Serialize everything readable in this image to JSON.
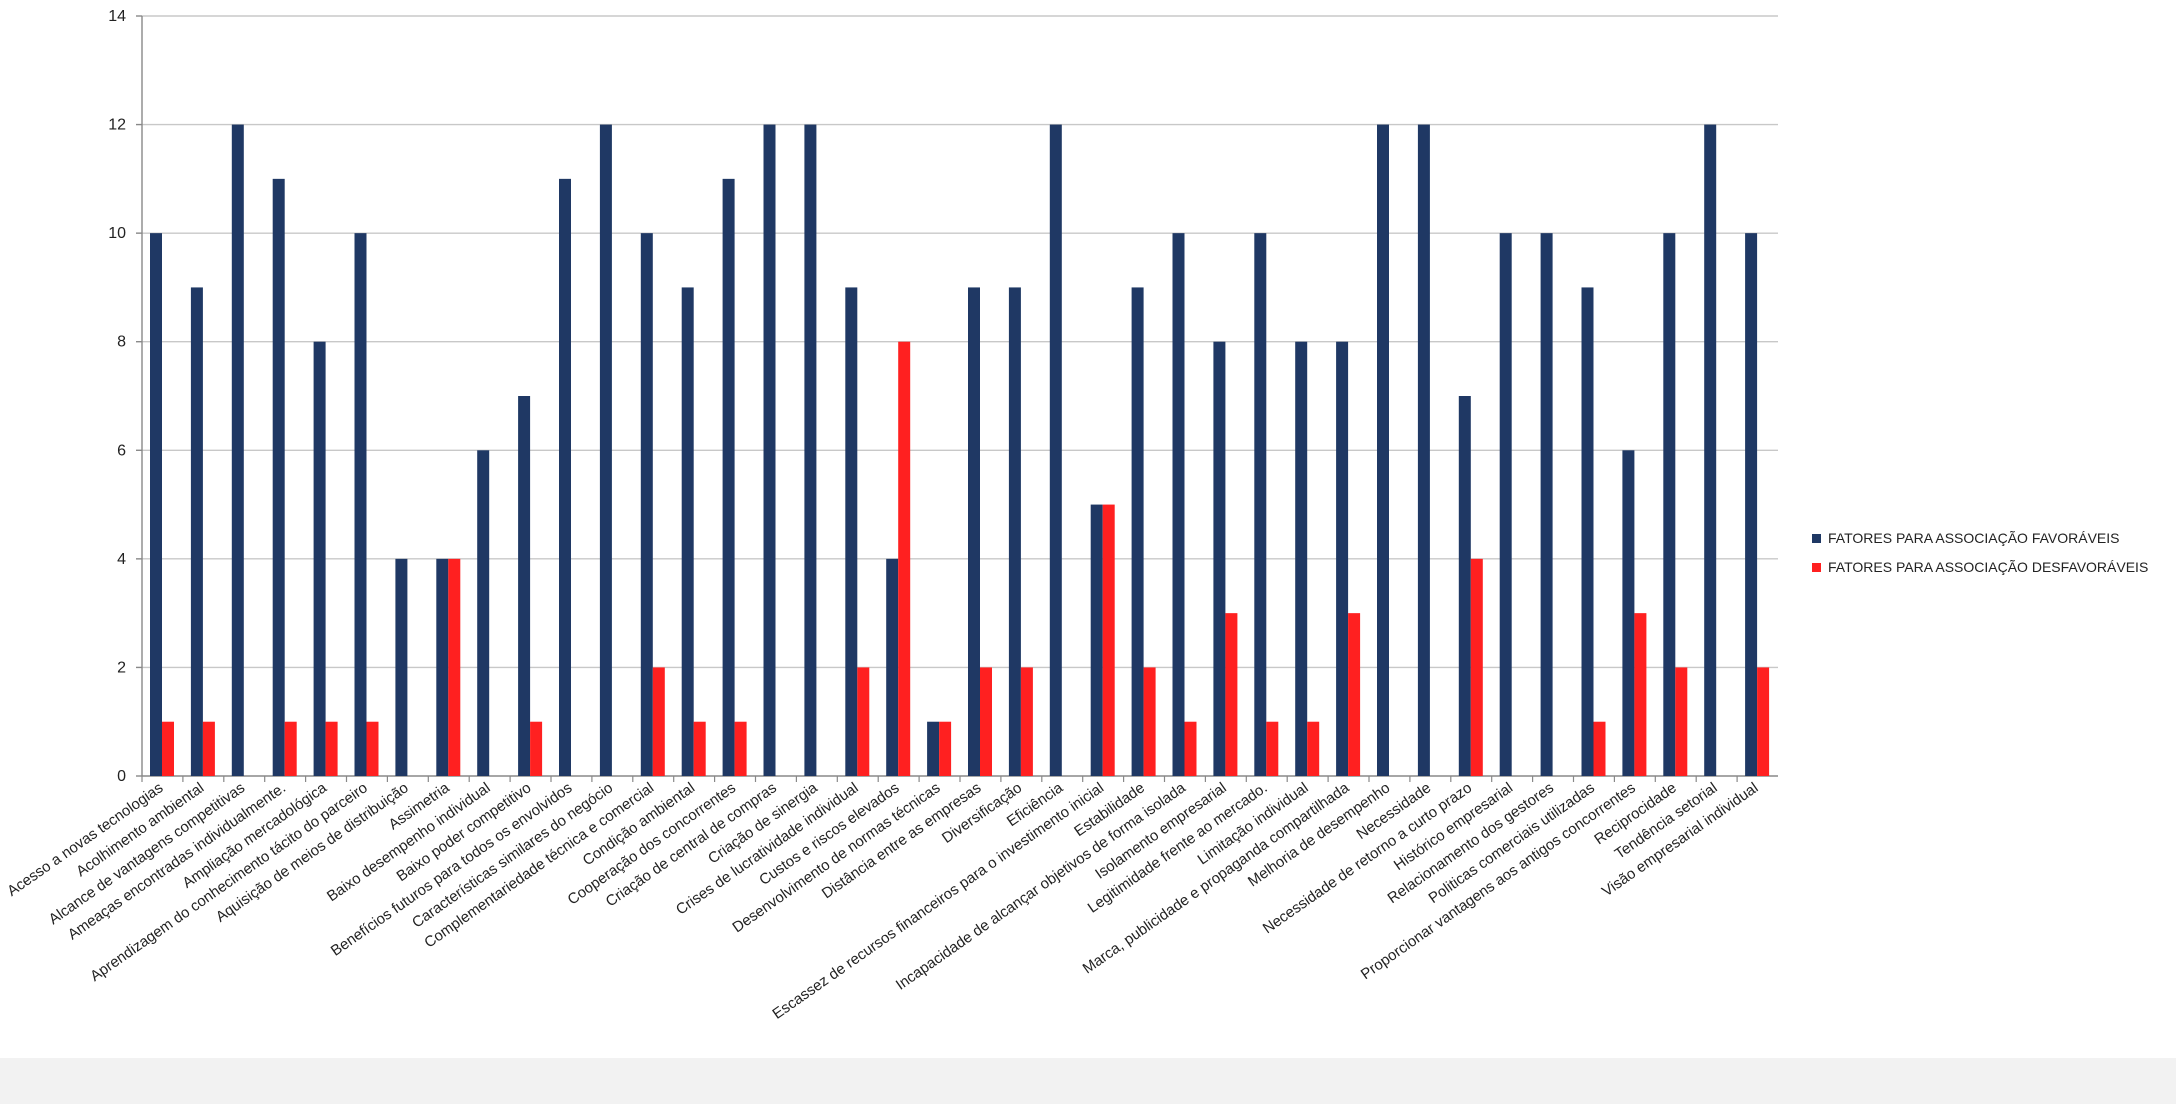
{
  "chart_data": {
    "type": "bar",
    "ylim": [
      0,
      14
    ],
    "yticks": [
      0,
      2,
      4,
      6,
      8,
      10,
      12,
      14
    ],
    "grid": true,
    "legend_position": "right",
    "categories": [
      "Acesso a novas tecnologias",
      "Acolhimento ambiental",
      "Alcance de vantagens competitivas",
      "Ameaças encontradas individualmente.",
      "Ampliação mercadológica",
      "Aprendizagem do conhecimento tácito do parceiro",
      "Aquisição de meios de distribuição",
      "Assimetria",
      "Baixo desempenho individual",
      "Baixo poder competitivo",
      "Benefícios futuros para todos os envolvidos",
      "Características similares do negócio",
      "Complementariedade técnica e comercial",
      "Condição ambiental",
      "Cooperação dos concorrentes",
      "Criação de central de compras",
      "Criação de sinergia",
      "Crises de lucratividade individual",
      "Custos e riscos elevados",
      "Desenvolvimento de normas técnicas",
      "Distância entre as empresas",
      "Diversificação",
      "Eficiência",
      "Escassez de recursos financeiros para o investimento inicial",
      "Estabilidade",
      "Incapacidade de alcançar objetivos de forma isolada",
      "Isolamento empresarial",
      "Legitimidade frente ao mercado.",
      "Limitação individual",
      "Marca, publicidade e propaganda compartilhada",
      "Melhoria de desempenho",
      "Necessidade",
      "Necessidade de retorno a curto prazo",
      "Histórico empresarial",
      "Relacionamento dos gestores",
      "Politicas comerciais utilizadas",
      "Proporcionar vantagens aos antigos concorrentes",
      "Reciprocidade",
      "Tendência setorial",
      "Visão empresarial individual"
    ],
    "series": [
      {
        "name": "FATORES PARA ASSOCIAÇÃO FAVORÁVEIS",
        "color": "#1f3864",
        "values": [
          10,
          9,
          12,
          11,
          8,
          10,
          4,
          4,
          6,
          7,
          11,
          12,
          10,
          9,
          11,
          12,
          12,
          9,
          4,
          1,
          9,
          9,
          12,
          5,
          9,
          10,
          8,
          10,
          8,
          8,
          12,
          12,
          7,
          10,
          10,
          9,
          6,
          10,
          12,
          10
        ]
      },
      {
        "name": "FATORES PARA ASSOCIAÇÃO DESFAVORÁVEIS",
        "color": "#ff2020",
        "values": [
          1,
          1,
          0,
          1,
          1,
          1,
          0,
          4,
          0,
          1,
          0,
          0,
          2,
          1,
          1,
          0,
          0,
          2,
          8,
          1,
          2,
          2,
          0,
          5,
          2,
          1,
          3,
          1,
          1,
          3,
          0,
          0,
          4,
          0,
          0,
          1,
          3,
          2,
          0,
          2
        ]
      }
    ]
  }
}
